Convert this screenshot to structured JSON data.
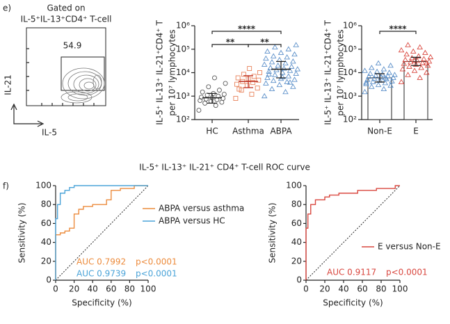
{
  "panels": [
    "e)",
    "f)"
  ],
  "section_title": "IL-5⁺ IL-13⁺ IL-21⁺ CD4⁺ T-cell ROC curve",
  "chart_data": [
    {
      "type": "flow",
      "title": "Gated on",
      "subtitle": "IL-5⁺IL-13⁺CD4⁺ T-cell",
      "gate_label": "54.9",
      "xlabel": "IL-5",
      "ylabel": "IL-21"
    },
    {
      "type": "dot",
      "categories": [
        "HC",
        "Asthma",
        "ABPA"
      ],
      "colors": [
        "#555555",
        "#e8825a",
        "#5b8fc9"
      ],
      "markers": [
        "circle",
        "square",
        "triangle"
      ],
      "mean_colors": [
        "#222222",
        "#c0392b",
        "#222222"
      ],
      "ylabel": [
        "IL-5⁺ IL-13⁺ IL-21⁺CD4⁺ T",
        "per 10⁷ lymphocytes"
      ],
      "log": true,
      "bars": false,
      "ylim": [
        100,
        1000000
      ],
      "yticks": [
        {
          "value": 100,
          "label": "10²"
        },
        {
          "value": 1000,
          "label": "10³"
        },
        {
          "value": 10000,
          "label": "10⁴"
        },
        {
          "value": 100000,
          "label": "10⁵"
        },
        {
          "value": 1000000,
          "label": "10⁶"
        }
      ],
      "points": [
        [
          250,
          400,
          500,
          550,
          600,
          650,
          700,
          750,
          800,
          850,
          900,
          1000,
          1100,
          1200,
          1300,
          1500,
          1800,
          2500,
          3500,
          6000
        ],
        [
          800,
          1200,
          1800,
          2200,
          2800,
          3200,
          3800,
          4200,
          4800,
          5500,
          6000,
          7000,
          8500,
          10000,
          15000,
          2000
        ],
        [
          1000,
          1500,
          2000,
          2500,
          3000,
          3500,
          4000,
          4500,
          5000,
          5500,
          6000,
          7000,
          8000,
          9000,
          10000,
          11000,
          12000,
          13000,
          14000,
          15000,
          16000,
          18000,
          20000,
          22000,
          25000,
          28000,
          30000,
          35000,
          40000,
          45000,
          50000,
          60000,
          70000,
          80000,
          100000,
          120000,
          150000,
          6500,
          8500,
          3800
        ]
      ],
      "means": [
        850,
        4200,
        14000
      ],
      "err_low": [
        500,
        2300,
        6000
      ],
      "err_high": [
        1300,
        7500,
        30000
      ],
      "significance": [
        {
          "pair": [
            "HC",
            "Asthma"
          ],
          "label": "**"
        },
        {
          "pair": [
            "HC",
            "ABPA"
          ],
          "label": "****"
        },
        {
          "pair": [
            "Asthma",
            "ABPA"
          ],
          "label": "**"
        }
      ]
    },
    {
      "type": "dot",
      "categories": [
        "Non-E",
        "E"
      ],
      "colors": [
        "#5b8fc9",
        "#d9473f"
      ],
      "markers": [
        "triangle",
        "triangle"
      ],
      "mean_colors": [
        "#222222",
        "#222222"
      ],
      "ylabel": [
        "IL-5⁺ IL-13⁺ IL-21⁺CD4⁺ T",
        "per 10⁷ lymphocytes"
      ],
      "log": true,
      "bars": true,
      "ylim": [
        100,
        1000000
      ],
      "yticks": [
        {
          "value": 100,
          "label": "10²"
        },
        {
          "value": 1000,
          "label": "10³"
        },
        {
          "value": 10000,
          "label": "10⁴"
        },
        {
          "value": 100000,
          "label": "10⁵"
        },
        {
          "value": 1000000,
          "label": "10⁶"
        }
      ],
      "points": [
        [
          1500,
          2000,
          2500,
          2800,
          3000,
          3300,
          3600,
          4000,
          4300,
          4600,
          5000,
          5300,
          5600,
          6000,
          6400,
          6800,
          7200,
          7600,
          8000,
          8500,
          9000,
          10000,
          11000,
          12000,
          14000,
          16000,
          20000,
          25000,
          3800,
          5800
        ],
        [
          4000,
          6000,
          8000,
          10000,
          12000,
          14000,
          16000,
          18000,
          20000,
          22000,
          24000,
          26000,
          28000,
          30000,
          32000,
          35000,
          38000,
          42000,
          46000,
          50000,
          60000,
          70000,
          80000,
          90000,
          120000,
          150000,
          25000,
          33000
        ]
      ],
      "means": [
        6000,
        30000
      ],
      "err_low": [
        4000,
        20000
      ],
      "err_high": [
        9000,
        45000
      ],
      "significance": [
        {
          "pair": [
            "Non-E",
            "E"
          ],
          "label": "****"
        }
      ]
    },
    {
      "type": "roc",
      "xlabel": "Specificity (%)",
      "ylabel": "Sensitivity (%)",
      "xlim": [
        0,
        100
      ],
      "ylim": [
        0,
        100
      ],
      "xticks": [
        0,
        20,
        40,
        60,
        80,
        100
      ],
      "yticks": [
        0,
        20,
        40,
        60,
        80,
        100
      ],
      "legend": "right",
      "series": [
        {
          "name": "ABPA versus asthma",
          "color": "#ec8b3c",
          "auc_label": "AUC 0.7992",
          "p_label": "p<0.0001",
          "x": [
            0,
            0,
            5,
            5,
            10,
            10,
            15,
            15,
            20,
            20,
            25,
            25,
            30,
            30,
            40,
            40,
            55,
            55,
            60,
            60,
            70,
            70,
            85,
            85,
            100
          ],
          "y": [
            0,
            48,
            48,
            50,
            50,
            52,
            52,
            55,
            55,
            70,
            70,
            75,
            75,
            78,
            78,
            80,
            80,
            85,
            85,
            95,
            95,
            97,
            97,
            100,
            100
          ]
        },
        {
          "name": "ABPA versus HC",
          "color": "#4aa3d8",
          "auc_label": "AUC 0.9739",
          "p_label": "p<0.0001",
          "x": [
            0,
            0,
            2,
            2,
            5,
            5,
            10,
            10,
            15,
            15,
            20,
            20,
            100
          ],
          "y": [
            0,
            65,
            65,
            80,
            80,
            92,
            92,
            95,
            95,
            98,
            98,
            100,
            100
          ]
        }
      ]
    },
    {
      "type": "roc",
      "xlabel": "Specificity (%)",
      "ylabel": "Sensitivity (%)",
      "xlim": [
        0,
        100
      ],
      "ylim": [
        0,
        100
      ],
      "xticks": [
        0,
        20,
        40,
        60,
        80,
        100
      ],
      "yticks": [
        0,
        20,
        40,
        60,
        80,
        100
      ],
      "legend": "right",
      "series": [
        {
          "name": "E versus Non-E",
          "color": "#d9473f",
          "auc_label": "AUC 0.9117",
          "p_label": "p<0.0001",
          "x": [
            0,
            0,
            2,
            2,
            5,
            5,
            10,
            10,
            20,
            20,
            25,
            25,
            35,
            35,
            55,
            55,
            75,
            75,
            95,
            95,
            100
          ],
          "y": [
            0,
            55,
            55,
            70,
            70,
            80,
            80,
            85,
            85,
            88,
            88,
            90,
            90,
            92,
            92,
            95,
            95,
            97,
            97,
            100,
            100
          ]
        }
      ]
    }
  ]
}
